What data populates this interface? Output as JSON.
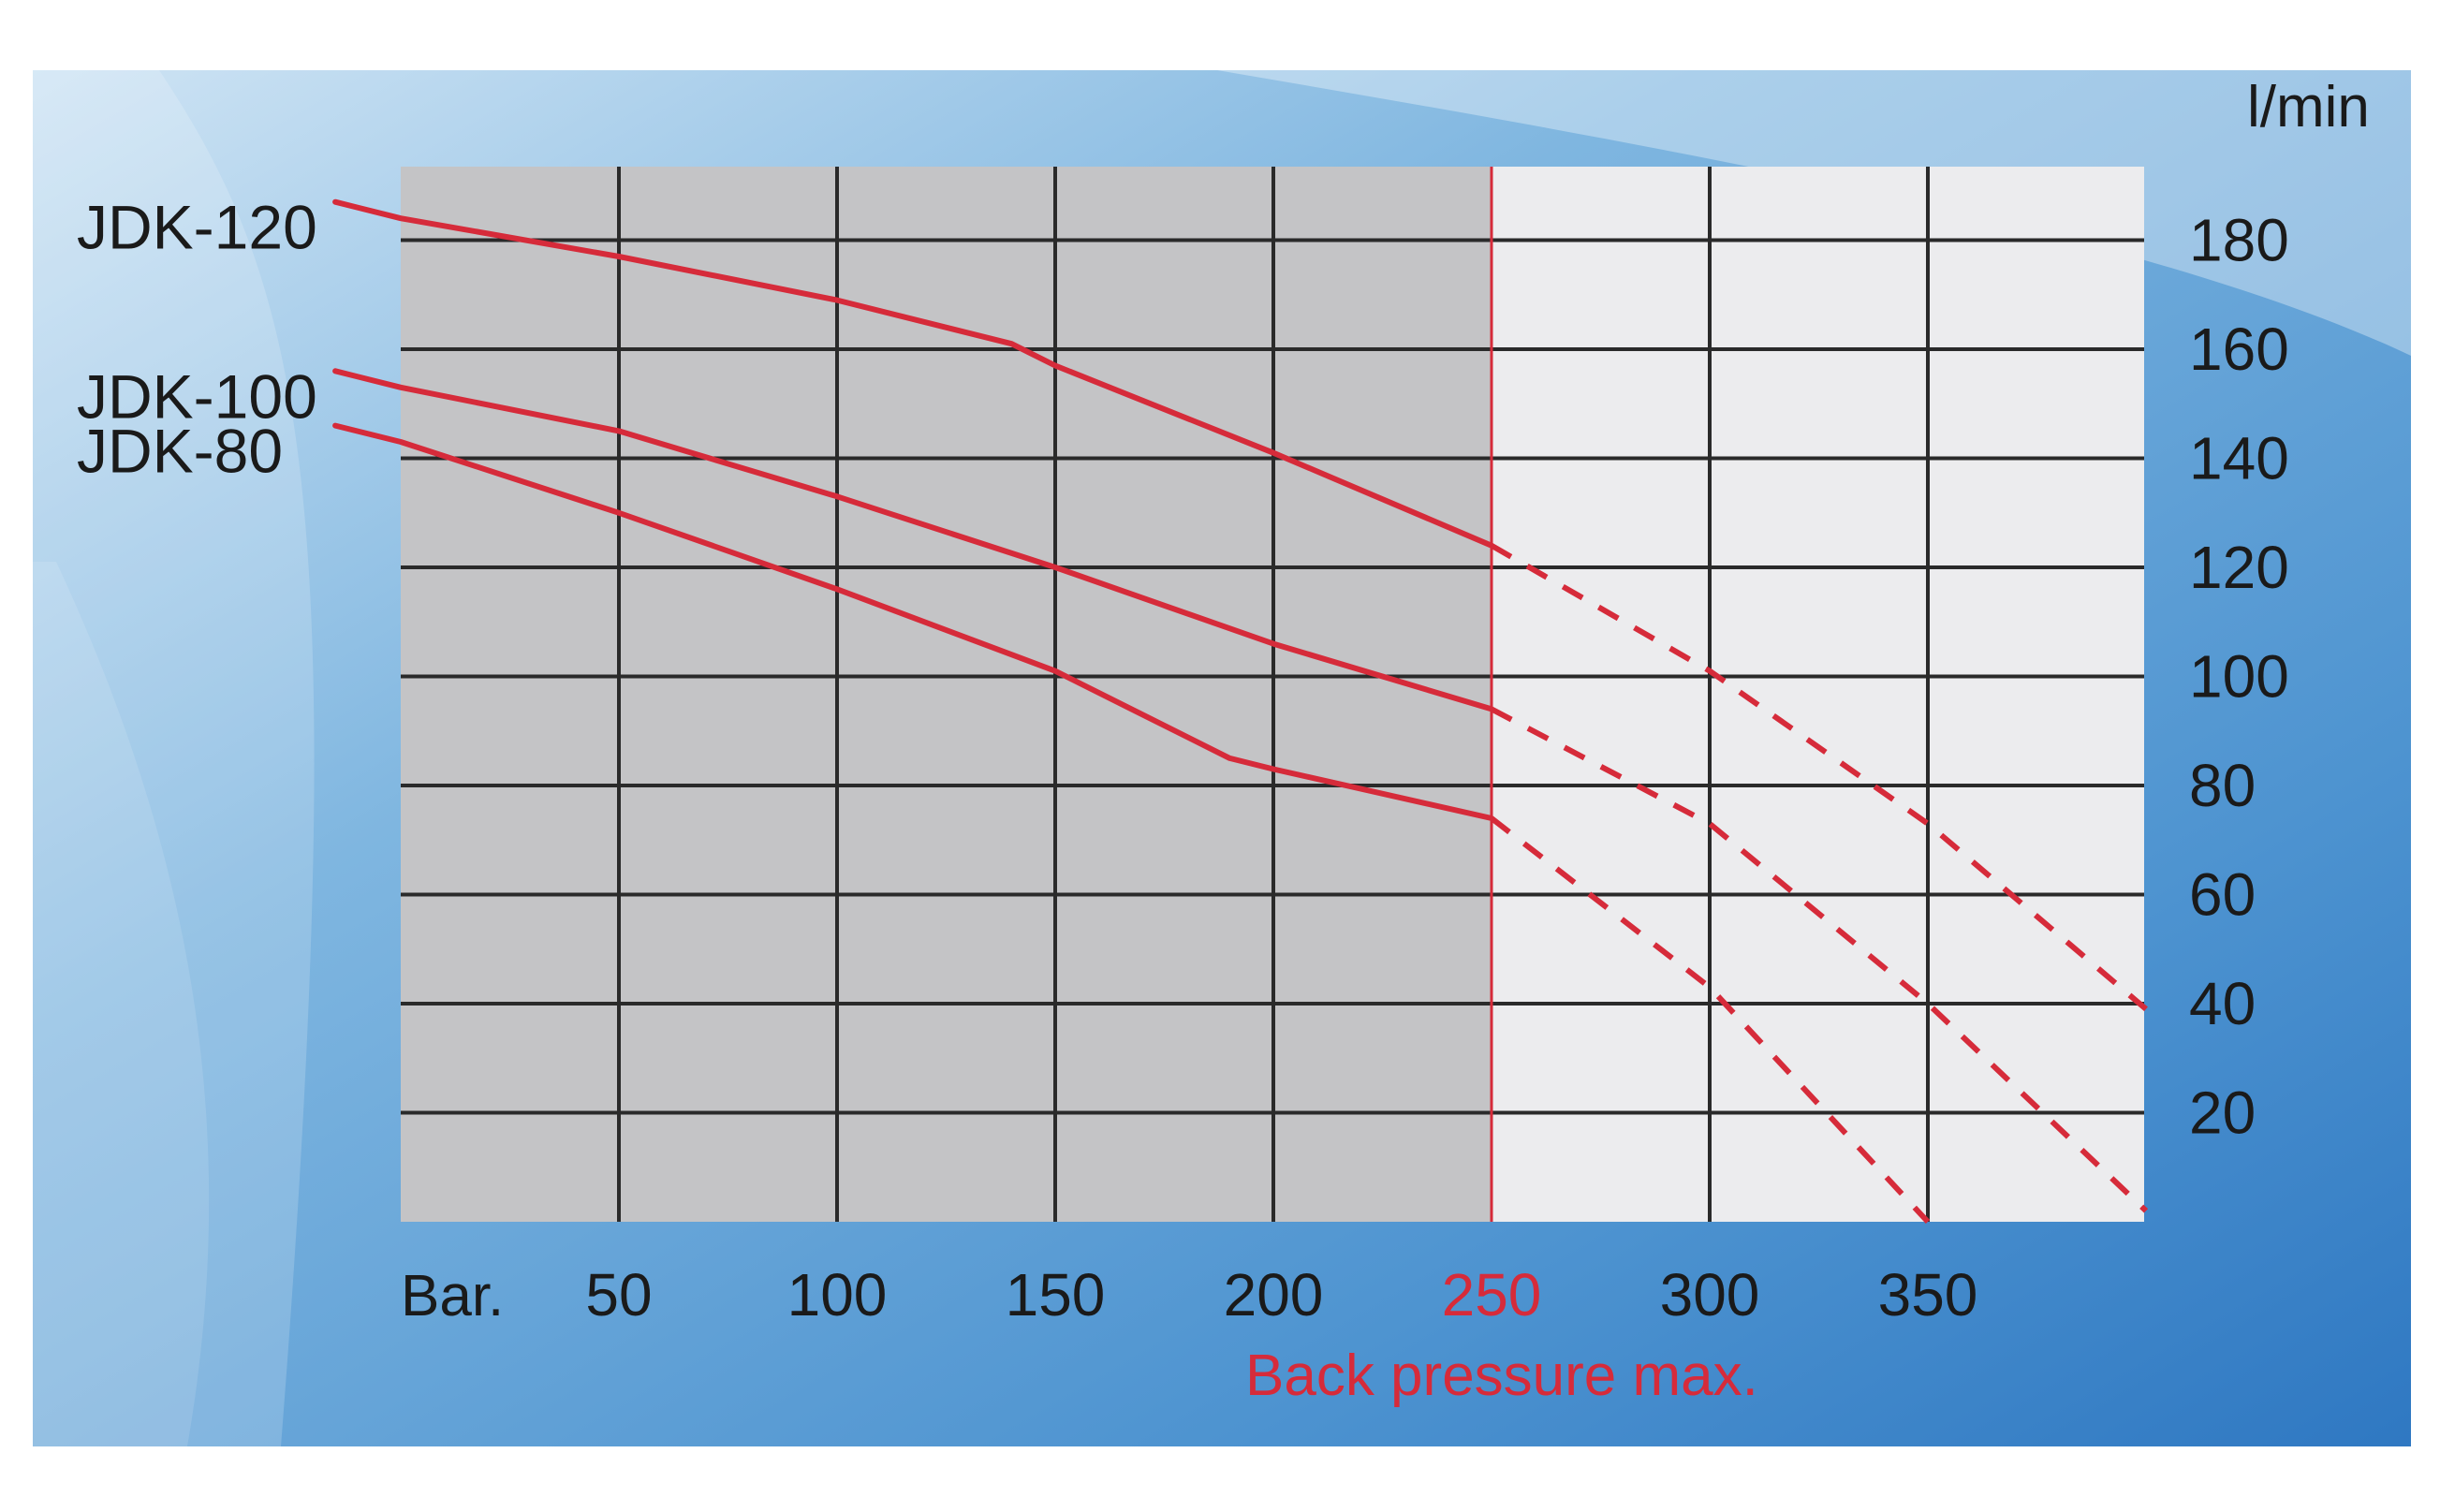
{
  "chart_data": {
    "type": "line",
    "title": "",
    "xlabel": "Bar.",
    "ylabel": "l/min",
    "xlim": [
      0,
      400
    ],
    "ylim": [
      0,
      190
    ],
    "x_ticks": [
      {
        "value": 50,
        "label": "50"
      },
      {
        "value": 100,
        "label": "100"
      },
      {
        "value": 150,
        "label": "150"
      },
      {
        "value": 200,
        "label": "200"
      },
      {
        "value": 250,
        "label": "250",
        "highlight": true
      },
      {
        "value": 300,
        "label": "300"
      },
      {
        "value": 350,
        "label": "350"
      }
    ],
    "y_ticks": [
      20,
      40,
      60,
      80,
      100,
      120,
      140,
      160,
      180
    ],
    "grid": true,
    "max_pressure": {
      "value": 250,
      "label": "Back pressure max."
    },
    "colors": {
      "line": "#d62b3a",
      "shaded": "#c4c4c6",
      "unshaded": "#ececee",
      "grid": "#2a2a2a",
      "accent": "#d62b3a"
    },
    "series": [
      {
        "name": "JDK-120",
        "solid": [
          [
            -15,
            187
          ],
          [
            0,
            184
          ],
          [
            50,
            177
          ],
          [
            100,
            169
          ],
          [
            140,
            161
          ],
          [
            150,
            157
          ],
          [
            200,
            141
          ],
          [
            250,
            124
          ]
        ],
        "dashed": [
          [
            250,
            124
          ],
          [
            300,
            101
          ],
          [
            350,
            73
          ],
          [
            400,
            39
          ]
        ]
      },
      {
        "name": "JDK-100",
        "solid": [
          [
            -15,
            156
          ],
          [
            0,
            153
          ],
          [
            50,
            145
          ],
          [
            100,
            133
          ],
          [
            150,
            120
          ],
          [
            200,
            106
          ],
          [
            250,
            94
          ]
        ],
        "dashed": [
          [
            250,
            94
          ],
          [
            300,
            73
          ],
          [
            350,
            40
          ],
          [
            400,
            2
          ]
        ]
      },
      {
        "name": "JDK-80",
        "solid": [
          [
            -15,
            146
          ],
          [
            0,
            143
          ],
          [
            50,
            130
          ],
          [
            100,
            116
          ],
          [
            140,
            104
          ],
          [
            150,
            101
          ],
          [
            190,
            85
          ],
          [
            200,
            83
          ],
          [
            250,
            74
          ]
        ],
        "dashed": [
          [
            250,
            74
          ],
          [
            300,
            43
          ],
          [
            350,
            0
          ]
        ]
      }
    ]
  }
}
